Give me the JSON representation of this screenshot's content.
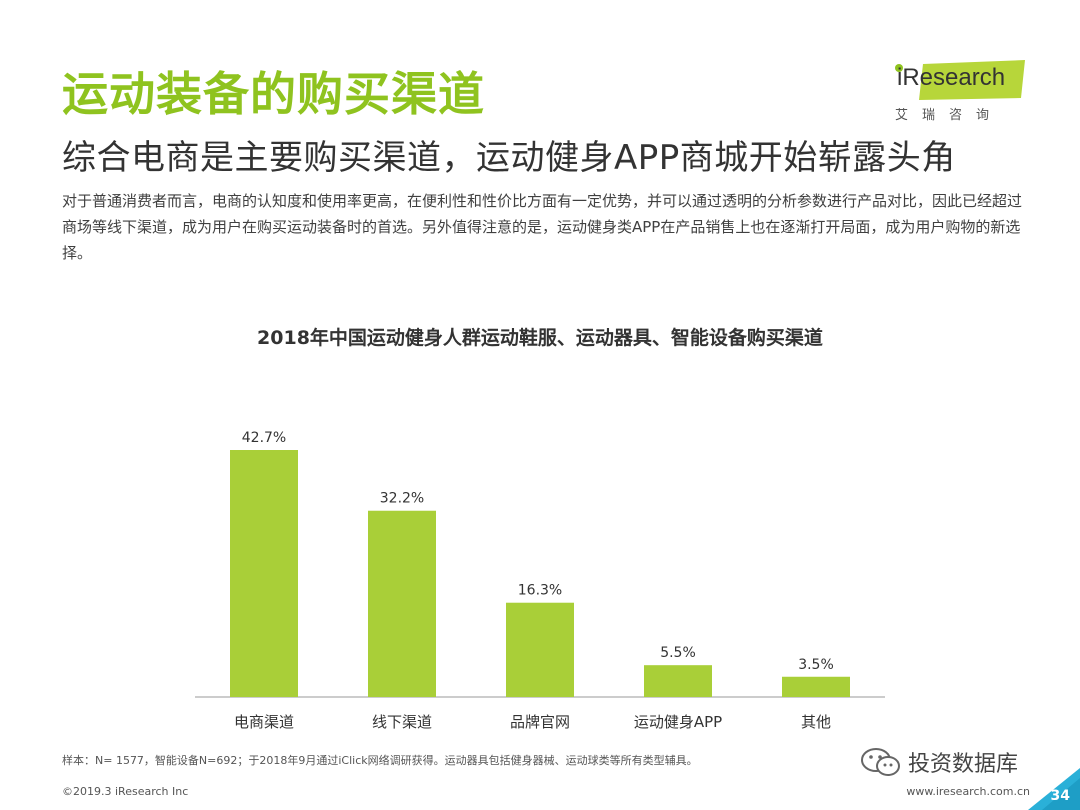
{
  "header": {
    "title": "运动装备的购买渠道",
    "subtitle": "综合电商是主要购买渠道，运动健身APP商城开始崭露头角",
    "body": "对于普通消费者而言，电商的认知度和使用率更高，在便利性和性价比方面有一定优势，并可以通过透明的分析参数进行产品对比，因此已经超过商场等线下渠道，成为用户在购买运动装备时的首选。另外值得注意的是，运动健身类APP在产品销售上也在逐渐打开局面，成为用户购物的新选择。"
  },
  "logo": {
    "brand": "iResearch",
    "tagline": "艾瑞咨询"
  },
  "chart_data": {
    "type": "bar",
    "title": "2018年中国运动健身人群运动鞋服、运动器具、智能设备购买渠道",
    "categories": [
      "电商渠道",
      "线下渠道",
      "品牌官网",
      "运动健身APP",
      "其他"
    ],
    "values": [
      42.7,
      32.2,
      16.3,
      5.5,
      3.5
    ],
    "value_labels": [
      "42.7%",
      "32.2%",
      "16.3%",
      "5.5%",
      "3.5%"
    ],
    "unit": "%",
    "ylim": [
      0,
      45
    ],
    "grid": false,
    "bar_color": "#a9cf38"
  },
  "footer": {
    "note": "样本：N= 1577，智能设备N=692；于2018年9月通过iClick网络调研获得。运动器具包括健身器械、运动球类等所有类型辅具。",
    "copyright": "©2019.3 iResearch Inc",
    "website": "www.iresearch.com.cn",
    "page_number": "34",
    "watermark": "投资数据库"
  },
  "colors": {
    "accent": "#8fc31f",
    "bar": "#a9cf38",
    "text": "#333333"
  }
}
